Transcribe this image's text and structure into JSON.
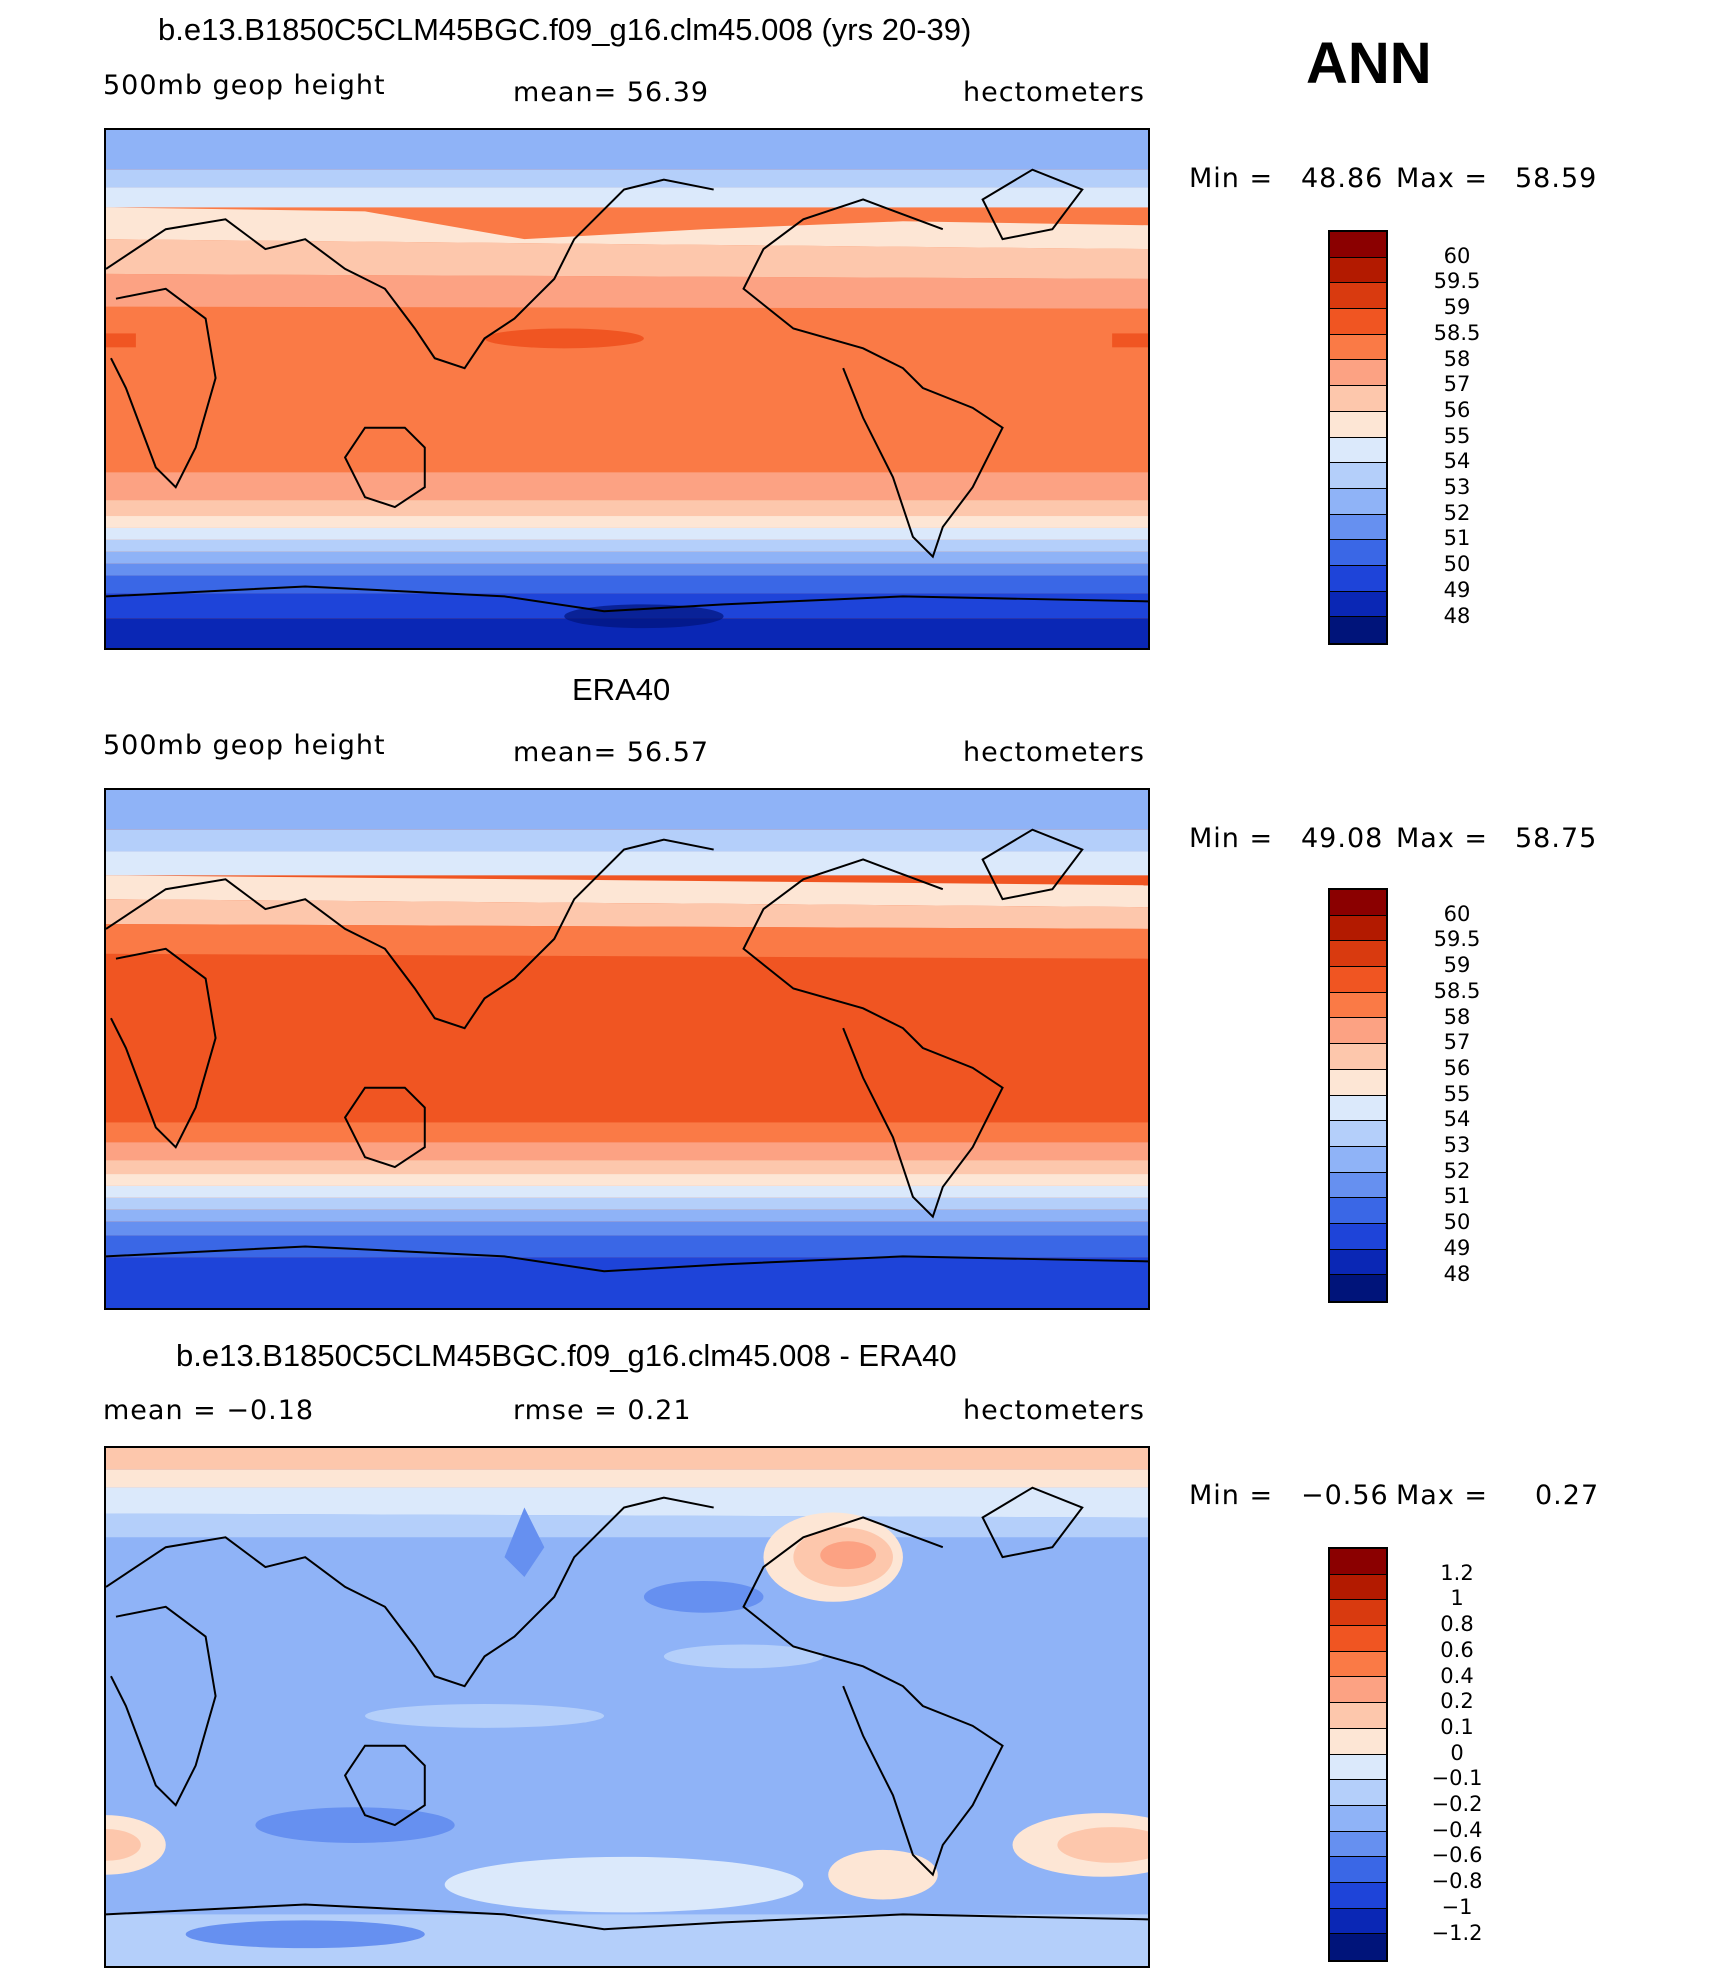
{
  "overall": {
    "season": "ANN"
  },
  "panels": [
    {
      "id": "model",
      "title": "b.e13.B1850C5CLM45BGC.f09_g16.clm45.008 (yrs 20-39)",
      "left_label": "500mb geop height",
      "center_label": "mean=   56.39",
      "right_label": "hectometers",
      "min_label": "Min =",
      "min_value": "48.86",
      "max_label": "Max =",
      "max_value": "58.59",
      "colorbar": {
        "levels": [
          "60",
          "59.5",
          "59",
          "58.5",
          "58",
          "57",
          "56",
          "55",
          "54",
          "53",
          "52",
          "51",
          "50",
          "49",
          "48"
        ],
        "colors": [
          "#8b0000",
          "#b31a00",
          "#d93a0f",
          "#f05522",
          "#fa7a46",
          "#fca283",
          "#fdc7ac",
          "#fde6d5",
          "#dbe9fb",
          "#b4cffa",
          "#8fb3f7",
          "#6690f0",
          "#3a67e6",
          "#1e44d9",
          "#0a27b5",
          "#00147a"
        ]
      },
      "map_fill": "model"
    },
    {
      "id": "obs",
      "title": "ERA40",
      "left_label": "500mb geop height",
      "center_label": "mean=   56.57",
      "right_label": "hectometers",
      "min_label": "Min =",
      "min_value": "49.08",
      "max_label": "Max =",
      "max_value": "58.75",
      "colorbar": {
        "levels": [
          "60",
          "59.5",
          "59",
          "58.5",
          "58",
          "57",
          "56",
          "55",
          "54",
          "53",
          "52",
          "51",
          "50",
          "49",
          "48"
        ],
        "colors": [
          "#8b0000",
          "#b31a00",
          "#d93a0f",
          "#f05522",
          "#fa7a46",
          "#fca283",
          "#fdc7ac",
          "#fde6d5",
          "#dbe9fb",
          "#b4cffa",
          "#8fb3f7",
          "#6690f0",
          "#3a67e6",
          "#1e44d9",
          "#0a27b5",
          "#00147a"
        ]
      },
      "map_fill": "obs"
    },
    {
      "id": "diff",
      "title": "b.e13.B1850C5CLM45BGC.f09_g16.clm45.008 - ERA40",
      "left_label": "mean =   −0.18",
      "center_label": "rmse =    0.21",
      "right_label": "hectometers",
      "min_label": "Min =",
      "min_value": "−0.56",
      "max_label": "Max =",
      "max_value": "0.27",
      "colorbar": {
        "levels": [
          "1.2",
          "1",
          "0.8",
          "0.6",
          "0.4",
          "0.2",
          "0.1",
          "0",
          "−0.1",
          "−0.2",
          "−0.4",
          "−0.6",
          "−0.8",
          "−1",
          "−1.2"
        ],
        "colors": [
          "#8b0000",
          "#b31a00",
          "#d93a0f",
          "#f05522",
          "#fa7a46",
          "#fca283",
          "#fdc7ac",
          "#fde6d5",
          "#dbe9fb",
          "#b4cffa",
          "#8fb3f7",
          "#6690f0",
          "#3a67e6",
          "#1e44d9",
          "#0a27b5",
          "#00147a"
        ]
      },
      "map_fill": "diff"
    }
  ]
}
